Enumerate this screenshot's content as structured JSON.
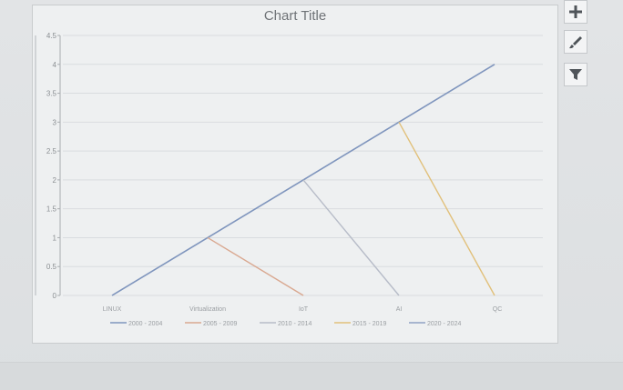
{
  "chart_elements_icon": "plus-icon",
  "chart_styles_icon": "brush-icon",
  "chart_filters_icon": "funnel-icon",
  "chart_data": {
    "type": "line",
    "title": "Chart Title",
    "categories": [
      "LINUX",
      "Virtualization",
      "IoT",
      "AI",
      "QC"
    ],
    "y_ticks": [
      "0",
      "0.5",
      "1",
      "1.5",
      "2",
      "2.5",
      "3",
      "3.5",
      "4",
      "4.5"
    ],
    "ylim": [
      0,
      4.5
    ],
    "grid": true,
    "legend_position": "bottom",
    "series": [
      {
        "name": "2000 - 2004",
        "color": "#7f95bd",
        "points": [
          [
            0,
            0
          ],
          [
            1,
            1
          ],
          [
            2,
            2
          ],
          [
            3,
            3
          ],
          [
            4,
            4
          ]
        ]
      },
      {
        "name": "2005 - 2009",
        "color": "#d9a890",
        "points": [
          [
            1,
            1
          ],
          [
            2,
            0
          ]
        ]
      },
      {
        "name": "2010 - 2014",
        "color": "#b7bcc8",
        "points": [
          [
            2,
            2
          ],
          [
            3,
            0
          ]
        ]
      },
      {
        "name": "2015 - 2019",
        "color": "#e1c07a",
        "points": [
          [
            3,
            3
          ],
          [
            4,
            0
          ]
        ]
      },
      {
        "name": "2020 - 2024",
        "color": "#8fa1c4",
        "points": []
      }
    ]
  }
}
